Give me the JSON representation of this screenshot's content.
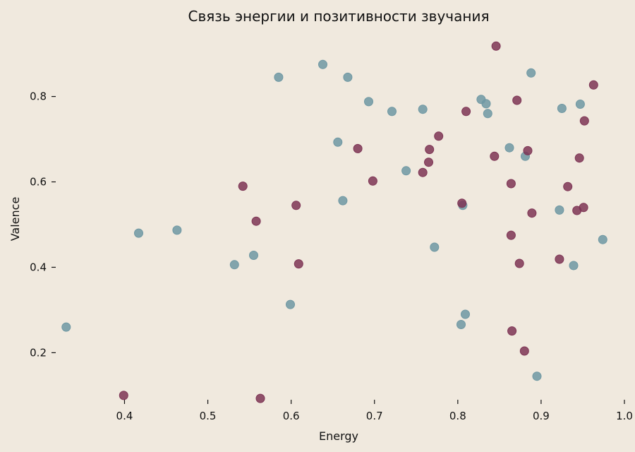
{
  "chart_data": {
    "type": "scatter",
    "title": "Связь энергии и позитивности звучания",
    "xlabel": "Energy",
    "ylabel": "Valence",
    "xlim": [
      0.32,
      1.0
    ],
    "ylim": [
      0.07,
      0.93
    ],
    "xticks": [
      "0.4",
      "0.5",
      "0.6",
      "0.7",
      "0.8",
      "0.9",
      "1.0"
    ],
    "yticks": [
      "0.2",
      "0.4",
      "0.6",
      "0.8"
    ],
    "grid": false,
    "series": [
      {
        "color": "#6f98a3",
        "points": [
          [
            0.33,
            0.26
          ],
          [
            0.417,
            0.48
          ],
          [
            0.463,
            0.487
          ],
          [
            0.532,
            0.406
          ],
          [
            0.555,
            0.428
          ],
          [
            0.585,
            0.845
          ],
          [
            0.599,
            0.313
          ],
          [
            0.638,
            0.875
          ],
          [
            0.656,
            0.693
          ],
          [
            0.662,
            0.556
          ],
          [
            0.668,
            0.845
          ],
          [
            0.693,
            0.788
          ],
          [
            0.721,
            0.765
          ],
          [
            0.738,
            0.626
          ],
          [
            0.758,
            0.77
          ],
          [
            0.772,
            0.447
          ],
          [
            0.804,
            0.266
          ],
          [
            0.806,
            0.545
          ],
          [
            0.809,
            0.29
          ],
          [
            0.828,
            0.793
          ],
          [
            0.834,
            0.783
          ],
          [
            0.836,
            0.76
          ],
          [
            0.862,
            0.68
          ],
          [
            0.881,
            0.66
          ],
          [
            0.888,
            0.855
          ],
          [
            0.895,
            0.145
          ],
          [
            0.922,
            0.534
          ],
          [
            0.925,
            0.772
          ],
          [
            0.939,
            0.404
          ],
          [
            0.947,
            0.782
          ],
          [
            0.974,
            0.465
          ]
        ]
      },
      {
        "color": "#7e3555",
        "points": [
          [
            0.399,
            0.1
          ],
          [
            0.542,
            0.59
          ],
          [
            0.558,
            0.508
          ],
          [
            0.563,
            0.093
          ],
          [
            0.606,
            0.545
          ],
          [
            0.609,
            0.408
          ],
          [
            0.68,
            0.678
          ],
          [
            0.698,
            0.602
          ],
          [
            0.758,
            0.622
          ],
          [
            0.765,
            0.646
          ],
          [
            0.766,
            0.676
          ],
          [
            0.777,
            0.707
          ],
          [
            0.805,
            0.55
          ],
          [
            0.81,
            0.765
          ],
          [
            0.844,
            0.66
          ],
          [
            0.846,
            0.918
          ],
          [
            0.864,
            0.596
          ],
          [
            0.864,
            0.475
          ],
          [
            0.865,
            0.251
          ],
          [
            0.871,
            0.791
          ],
          [
            0.874,
            0.409
          ],
          [
            0.88,
            0.204
          ],
          [
            0.884,
            0.673
          ],
          [
            0.889,
            0.527
          ],
          [
            0.922,
            0.419
          ],
          [
            0.932,
            0.589
          ],
          [
            0.943,
            0.533
          ],
          [
            0.946,
            0.656
          ],
          [
            0.951,
            0.54
          ],
          [
            0.952,
            0.743
          ],
          [
            0.963,
            0.827
          ]
        ]
      }
    ]
  }
}
